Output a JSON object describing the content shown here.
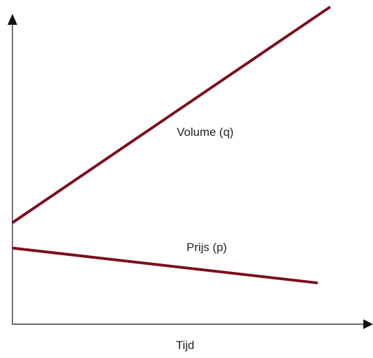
{
  "chart_data": {
    "type": "line",
    "xlabel": "Tijd",
    "ylabel": "",
    "series": [
      {
        "name": "Volume (q)",
        "x": [
          0,
          1
        ],
        "values": [
          0.32,
          1.0
        ],
        "color": "#7a0f1c"
      },
      {
        "name": "Prijs (p)",
        "x": [
          0,
          1
        ],
        "values": [
          0.24,
          0.13
        ],
        "color": "#7a0f1c"
      }
    ],
    "xlim": [
      0,
      1
    ],
    "ylim": [
      0,
      1
    ],
    "axis_color": "#111111",
    "grid": false,
    "legend": "none (series labelled directly on the lines)"
  }
}
